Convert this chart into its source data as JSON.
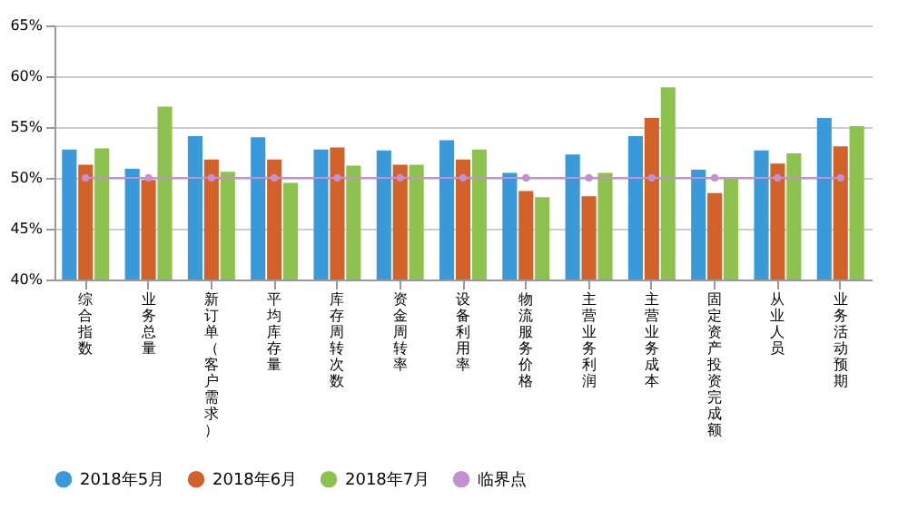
{
  "chart_data": {
    "type": "bar",
    "categories": [
      "综合指数",
      "业务总量",
      "新订单（客户需求）",
      "平均库存量",
      "库存周转次数",
      "资金周转率",
      "设备利用率",
      "物流服务价格",
      "主营业务利润",
      "主营业务成本",
      "固定资产投资完成额",
      "从业人员",
      "业务活动预期"
    ],
    "series": [
      {
        "name": "2018年5月",
        "color": "#3a9ad9",
        "values": [
          52.8,
          50.9,
          54.1,
          54.0,
          52.8,
          52.7,
          53.7,
          50.5,
          52.3,
          54.1,
          50.8,
          52.7,
          55.9
        ]
      },
      {
        "name": "2018年6月",
        "color": "#d2622a",
        "values": [
          51.3,
          49.8,
          51.8,
          51.8,
          53.0,
          51.3,
          51.8,
          48.7,
          48.2,
          55.9,
          48.5,
          51.4,
          53.1
        ]
      },
      {
        "name": "2018年7月",
        "color": "#8dc24f",
        "values": [
          52.9,
          57.0,
          50.6,
          49.5,
          51.2,
          51.3,
          52.8,
          48.1,
          50.5,
          58.9,
          50.0,
          52.4,
          55.1
        ]
      },
      {
        "name": "临界点",
        "color": "#c490d1",
        "type": "line",
        "marker": "circle",
        "values": [
          50,
          50,
          50,
          50,
          50,
          50,
          50,
          50,
          50,
          50,
          50,
          50,
          50
        ]
      }
    ],
    "ylim": [
      40,
      65
    ],
    "yticks": [
      {
        "value": 40,
        "label": "40%"
      },
      {
        "value": 45,
        "label": "45%"
      },
      {
        "value": 50,
        "label": "50%"
      },
      {
        "value": 55,
        "label": "55%"
      },
      {
        "value": 60,
        "label": "60%"
      },
      {
        "value": 65,
        "label": "65%"
      }
    ],
    "grid": "y",
    "legend": "bottom"
  }
}
